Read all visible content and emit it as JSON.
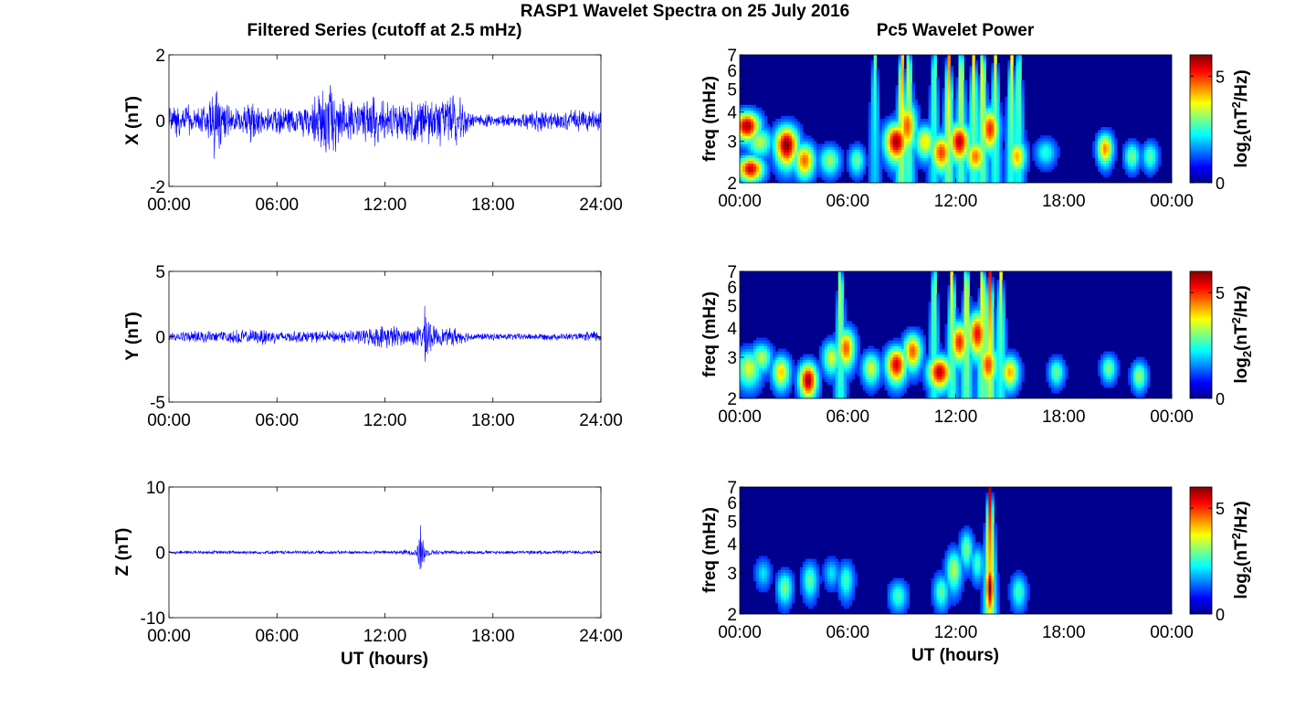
{
  "suptitle": "RASP1 Wavelet Spectra on 25 July 2016",
  "left_title": "Filtered Series (cutoff at 2.5 mHz)",
  "right_title": "Pc5 Wavelet Power",
  "colors": {
    "series": "#0000ff",
    "axes": "#000000",
    "cmap_low": "#00008f",
    "cmap_high": "#800000"
  },
  "chart_data": [
    {
      "type": "line",
      "component": "X",
      "ylabel": "X (nT)",
      "xlabel": "",
      "ylim": [
        -2,
        2
      ],
      "yticks": [
        "2",
        "0",
        "-2"
      ],
      "xlim_hours": [
        0,
        24
      ],
      "xticks": [
        "00:00",
        "06:00",
        "12:00",
        "18:00",
        "24:00"
      ],
      "x_hours": [
        0,
        0.5,
        1,
        1.5,
        2,
        2.3,
        2.6,
        2.8,
        3,
        3.5,
        4,
        4.5,
        5,
        5.5,
        6,
        6.5,
        7,
        7.5,
        8,
        8.5,
        8.8,
        9.2,
        9.5,
        10,
        10.5,
        11,
        11.5,
        12,
        12.5,
        13,
        13.5,
        14,
        14.5,
        15,
        15.5,
        16,
        16.5,
        17,
        18,
        19,
        20,
        20.5,
        21,
        21.5,
        22,
        22.5,
        23,
        23.5,
        24
      ],
      "amplitude_nT": [
        0.5,
        0.6,
        0.6,
        0.4,
        0.5,
        0.9,
        1.5,
        1.2,
        0.7,
        0.4,
        0.4,
        0.9,
        0.5,
        0.4,
        0.5,
        0.5,
        0.4,
        0.6,
        0.7,
        1.0,
        1.3,
        1.0,
        0.8,
        0.8,
        0.6,
        0.8,
        0.9,
        0.7,
        0.7,
        0.6,
        0.7,
        0.9,
        0.8,
        0.9,
        0.8,
        1.0,
        0.5,
        0.2,
        0.2,
        0.2,
        0.3,
        0.4,
        0.3,
        0.3,
        0.3,
        0.4,
        0.3,
        0.4,
        0.3
      ]
    },
    {
      "type": "line",
      "component": "Y",
      "ylabel": "Y (nT)",
      "xlabel": "",
      "ylim": [
        -5,
        5
      ],
      "yticks": [
        "5",
        "0",
        "-5"
      ],
      "xlim_hours": [
        0,
        24
      ],
      "xticks": [
        "00:00",
        "06:00",
        "12:00",
        "18:00",
        "24:00"
      ],
      "x_hours": [
        0,
        1,
        2,
        3,
        4,
        5,
        5.3,
        6,
        7,
        8,
        9,
        10,
        11,
        11.5,
        12,
        12.5,
        13,
        13.5,
        14,
        14.3,
        14.6,
        15,
        15.5,
        15.8,
        16.2,
        17,
        18,
        19,
        20,
        21,
        22,
        23,
        23.5,
        24
      ],
      "amplitude_nT": [
        0.4,
        0.5,
        0.5,
        0.5,
        0.6,
        0.6,
        0.9,
        0.5,
        0.5,
        0.5,
        0.5,
        0.6,
        0.7,
        0.9,
        1.0,
        1.0,
        0.7,
        0.8,
        1.0,
        3.1,
        1.0,
        0.8,
        0.7,
        0.9,
        0.6,
        0.3,
        0.3,
        0.3,
        0.3,
        0.3,
        0.3,
        0.3,
        0.6,
        0.4
      ]
    },
    {
      "type": "line",
      "component": "Z",
      "ylabel": "Z (nT)",
      "xlabel": "UT (hours)",
      "ylim": [
        -10,
        10
      ],
      "yticks": [
        "10",
        "0",
        "-10"
      ],
      "xlim_hours": [
        0,
        24
      ],
      "xticks": [
        "00:00",
        "06:00",
        "12:00",
        "18:00",
        "24:00"
      ],
      "x_hours": [
        0,
        2,
        4,
        6,
        8,
        10,
        12,
        13,
        13.7,
        14.0,
        14.3,
        15,
        16,
        18,
        20,
        22,
        24
      ],
      "amplitude_nT": [
        0.3,
        0.3,
        0.3,
        0.3,
        0.3,
        0.3,
        0.3,
        0.4,
        0.6,
        5.3,
        0.6,
        0.4,
        0.3,
        0.3,
        0.3,
        0.3,
        0.3
      ]
    },
    {
      "type": "heatmap",
      "component": "X",
      "ylabel": "freq (mHz)",
      "xlabel": "",
      "ylim_mHz": [
        2,
        7
      ],
      "yscale": "log",
      "yticks": [
        "7",
        "6",
        "5",
        "4",
        "3",
        "2"
      ],
      "xlim_hours": [
        0,
        24
      ],
      "xticks": [
        "00:00",
        "06:00",
        "12:00",
        "18:00",
        "00:00"
      ],
      "colorbar_label": "log2(nT^2/Hz)",
      "colorbar_ticks": [
        "5",
        "0"
      ],
      "clim": [
        0,
        6
      ],
      "blobs": [
        {
          "t": 0.4,
          "f": 3.5,
          "level": 5.8,
          "dt": 0.5,
          "df": 0.35
        },
        {
          "t": 0.6,
          "f": 2.3,
          "level": 5.5,
          "dt": 0.5,
          "df": 0.2
        },
        {
          "t": 1.1,
          "f": 3.0,
          "level": 3.0,
          "dt": 0.5,
          "df": 0.3
        },
        {
          "t": 2.6,
          "f": 2.9,
          "level": 6.0,
          "dt": 0.45,
          "df": 0.4
        },
        {
          "t": 3.6,
          "f": 2.5,
          "level": 4.5,
          "dt": 0.4,
          "df": 0.3
        },
        {
          "t": 5.0,
          "f": 2.5,
          "level": 2.8,
          "dt": 0.4,
          "df": 0.25
        },
        {
          "t": 6.5,
          "f": 2.5,
          "level": 2.5,
          "dt": 0.3,
          "df": 0.25
        },
        {
          "t": 8.7,
          "f": 3.0,
          "level": 5.8,
          "dt": 0.45,
          "df": 0.4
        },
        {
          "t": 9.3,
          "f": 3.5,
          "level": 4.6,
          "dt": 0.35,
          "df": 0.6
        },
        {
          "t": 10.3,
          "f": 3.0,
          "level": 3.6,
          "dt": 0.4,
          "df": 0.35
        },
        {
          "t": 11.2,
          "f": 2.7,
          "level": 4.8,
          "dt": 0.4,
          "df": 0.35
        },
        {
          "t": 12.2,
          "f": 3.0,
          "level": 5.6,
          "dt": 0.4,
          "df": 0.4
        },
        {
          "t": 13.1,
          "f": 2.6,
          "level": 4.4,
          "dt": 0.4,
          "df": 0.3
        },
        {
          "t": 13.9,
          "f": 3.4,
          "level": 5.0,
          "dt": 0.35,
          "df": 0.5
        },
        {
          "t": 15.4,
          "f": 2.6,
          "level": 4.0,
          "dt": 0.35,
          "df": 0.3
        },
        {
          "t": 17.0,
          "f": 2.7,
          "level": 2.0,
          "dt": 0.4,
          "df": 0.25
        },
        {
          "t": 20.3,
          "f": 2.8,
          "level": 4.3,
          "dt": 0.3,
          "df": 0.3
        },
        {
          "t": 21.8,
          "f": 2.6,
          "level": 2.6,
          "dt": 0.3,
          "df": 0.25
        },
        {
          "t": 22.8,
          "f": 2.6,
          "level": 2.4,
          "dt": 0.3,
          "df": 0.25
        }
      ],
      "streaks": [
        {
          "t": 7.5,
          "level": 2.5
        },
        {
          "t": 9.0,
          "level": 4.8
        },
        {
          "t": 9.4,
          "level": 3.8
        },
        {
          "t": 10.8,
          "level": 3.0
        },
        {
          "t": 11.6,
          "level": 4.6
        },
        {
          "t": 12.3,
          "level": 4.0
        },
        {
          "t": 13.0,
          "level": 3.8
        },
        {
          "t": 13.5,
          "level": 4.2
        },
        {
          "t": 14.2,
          "level": 3.4
        },
        {
          "t": 15.1,
          "level": 3.6
        },
        {
          "t": 15.5,
          "level": 3.2
        }
      ]
    },
    {
      "type": "heatmap",
      "component": "Y",
      "ylabel": "freq (mHz)",
      "xlabel": "",
      "ylim_mHz": [
        2,
        7
      ],
      "yscale": "log",
      "yticks": [
        "7",
        "6",
        "5",
        "4",
        "3",
        "2"
      ],
      "xlim_hours": [
        0,
        24
      ],
      "xticks": [
        "00:00",
        "06:00",
        "12:00",
        "18:00",
        "00:00"
      ],
      "colorbar_label": "log2(nT^2/Hz)",
      "colorbar_ticks": [
        "5",
        "0"
      ],
      "clim": [
        0,
        6
      ],
      "blobs": [
        {
          "t": 0.5,
          "f": 2.7,
          "level": 3.2,
          "dt": 0.5,
          "df": 0.35
        },
        {
          "t": 1.2,
          "f": 3.0,
          "level": 3.0,
          "dt": 0.4,
          "df": 0.3
        },
        {
          "t": 2.3,
          "f": 2.6,
          "level": 3.8,
          "dt": 0.35,
          "df": 0.3
        },
        {
          "t": 3.8,
          "f": 2.4,
          "level": 5.8,
          "dt": 0.35,
          "df": 0.3
        },
        {
          "t": 5.1,
          "f": 3.0,
          "level": 3.2,
          "dt": 0.35,
          "df": 0.35
        },
        {
          "t": 5.9,
          "f": 3.3,
          "level": 4.6,
          "dt": 0.35,
          "df": 0.45
        },
        {
          "t": 7.3,
          "f": 2.7,
          "level": 3.2,
          "dt": 0.35,
          "df": 0.3
        },
        {
          "t": 8.7,
          "f": 2.8,
          "level": 5.4,
          "dt": 0.4,
          "df": 0.35
        },
        {
          "t": 9.6,
          "f": 3.2,
          "level": 4.6,
          "dt": 0.35,
          "df": 0.4
        },
        {
          "t": 11.1,
          "f": 2.6,
          "level": 5.6,
          "dt": 0.45,
          "df": 0.3
        },
        {
          "t": 12.2,
          "f": 3.5,
          "level": 5.0,
          "dt": 0.35,
          "df": 0.5
        },
        {
          "t": 13.2,
          "f": 3.8,
          "level": 5.2,
          "dt": 0.35,
          "df": 0.6
        },
        {
          "t": 13.8,
          "f": 2.8,
          "level": 4.8,
          "dt": 0.35,
          "df": 0.4
        },
        {
          "t": 15.0,
          "f": 2.6,
          "level": 4.0,
          "dt": 0.35,
          "df": 0.3
        },
        {
          "t": 17.6,
          "f": 2.6,
          "level": 2.5,
          "dt": 0.3,
          "df": 0.25
        },
        {
          "t": 20.5,
          "f": 2.7,
          "level": 2.6,
          "dt": 0.3,
          "df": 0.25
        },
        {
          "t": 22.2,
          "f": 2.5,
          "level": 2.8,
          "dt": 0.3,
          "df": 0.25
        }
      ],
      "streaks": [
        {
          "t": 5.6,
          "level": 3.6
        },
        {
          "t": 10.8,
          "level": 3.2
        },
        {
          "t": 11.8,
          "level": 3.8
        },
        {
          "t": 12.6,
          "level": 4.2
        },
        {
          "t": 13.5,
          "level": 4.4
        },
        {
          "t": 13.9,
          "level": 5.2
        },
        {
          "t": 14.5,
          "level": 3.4
        }
      ]
    },
    {
      "type": "heatmap",
      "component": "Z",
      "ylabel": "freq (mHz)",
      "xlabel": "UT (hours)",
      "ylim_mHz": [
        2,
        7
      ],
      "yscale": "log",
      "yticks": [
        "7",
        "6",
        "5",
        "4",
        "3",
        "2"
      ],
      "xlim_hours": [
        0,
        24
      ],
      "xticks": [
        "00:00",
        "06:00",
        "12:00",
        "18:00",
        "00:00"
      ],
      "colorbar_label": "log2(nT^2/Hz)",
      "colorbar_ticks": [
        "5",
        "0"
      ],
      "clim": [
        0,
        6
      ],
      "blobs": [
        {
          "t": 1.3,
          "f": 3.0,
          "level": 1.6,
          "dt": 0.3,
          "df": 0.3
        },
        {
          "t": 2.5,
          "f": 2.6,
          "level": 2.6,
          "dt": 0.3,
          "df": 0.3
        },
        {
          "t": 3.9,
          "f": 2.8,
          "level": 2.4,
          "dt": 0.3,
          "df": 0.35
        },
        {
          "t": 5.1,
          "f": 3.0,
          "level": 1.6,
          "dt": 0.3,
          "df": 0.3
        },
        {
          "t": 5.9,
          "f": 2.8,
          "level": 2.2,
          "dt": 0.3,
          "df": 0.35
        },
        {
          "t": 8.8,
          "f": 2.4,
          "level": 2.2,
          "dt": 0.35,
          "df": 0.25
        },
        {
          "t": 11.2,
          "f": 2.5,
          "level": 2.4,
          "dt": 0.3,
          "df": 0.3
        },
        {
          "t": 11.9,
          "f": 3.1,
          "level": 3.0,
          "dt": 0.3,
          "df": 0.45
        },
        {
          "t": 12.6,
          "f": 3.8,
          "level": 2.6,
          "dt": 0.25,
          "df": 0.5
        },
        {
          "t": 13.2,
          "f": 3.3,
          "level": 2.2,
          "dt": 0.25,
          "df": 0.4
        },
        {
          "t": 13.9,
          "f": 2.6,
          "level": 6.0,
          "dt": 0.18,
          "df": 0.5
        },
        {
          "t": 15.5,
          "f": 2.5,
          "level": 2.2,
          "dt": 0.3,
          "df": 0.3
        }
      ],
      "streaks": [
        {
          "t": 13.9,
          "level": 5.8
        }
      ]
    }
  ]
}
